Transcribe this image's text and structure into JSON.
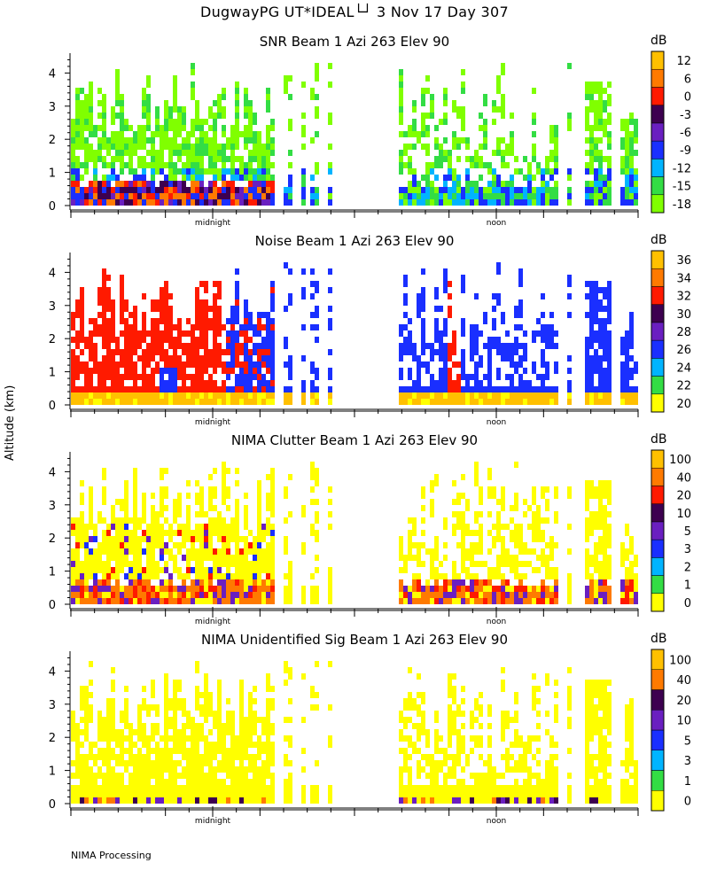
{
  "header": {
    "title": "DugwayPG UT*IDEAL└┘   3 Nov 17 Day 307"
  },
  "axis": {
    "ylabel": "Altitude (km)"
  },
  "footer": {
    "label": "NIMA Processing"
  },
  "chart_data": [
    {
      "type": "heatmap",
      "title": "SNR Beam 1 Azi 263 Elev 90",
      "ylabel": "Altitude (km)",
      "ylim": [
        0,
        4.6
      ],
      "yticks": [
        "0",
        "1",
        "2",
        "3",
        "4"
      ],
      "xticks": [
        "midnight",
        "noon"
      ],
      "unit": "dB",
      "colorbar_labels": [
        "-18",
        "-15",
        "-12",
        "-9",
        "-6",
        "-3",
        "0",
        "6",
        "12"
      ],
      "colorbar_colors": [
        "#80ff00",
        "#33dd44",
        "#00b4ff",
        "#1a2fff",
        "#6a1fc0",
        "#3d0050",
        "#ff1a00",
        "#ff7a00",
        "#ffc000"
      ]
    },
    {
      "type": "heatmap",
      "title": "Noise Beam 1 Azi 263 Elev 90",
      "ylabel": "Altitude (km)",
      "ylim": [
        0,
        4.6
      ],
      "yticks": [
        "0",
        "1",
        "2",
        "3",
        "4"
      ],
      "xticks": [
        "midnight",
        "noon"
      ],
      "unit": "dB",
      "colorbar_labels": [
        "20",
        "22",
        "24",
        "26",
        "28",
        "30",
        "32",
        "34",
        "36"
      ],
      "colorbar_colors": [
        "#ffff00",
        "#33dd44",
        "#00b4ff",
        "#1a2fff",
        "#6a1fc0",
        "#3d0050",
        "#ff1a00",
        "#ff7a00",
        "#ffc000"
      ]
    },
    {
      "type": "heatmap",
      "title": "NIMA Clutter Beam 1 Azi 263 Elev 90",
      "ylabel": "Altitude (km)",
      "ylim": [
        0,
        4.6
      ],
      "yticks": [
        "0",
        "1",
        "2",
        "3",
        "4"
      ],
      "xticks": [
        "midnight",
        "noon"
      ],
      "unit": "dB",
      "colorbar_labels": [
        "0",
        "1",
        "2",
        "3",
        "5",
        "10",
        "20",
        "40",
        "100"
      ],
      "colorbar_colors": [
        "#ffff00",
        "#33dd44",
        "#00b4ff",
        "#1a2fff",
        "#6a1fc0",
        "#3d0050",
        "#ff1a00",
        "#ff7a00",
        "#ffc000"
      ]
    },
    {
      "type": "heatmap",
      "title": "NIMA Unidentified Sig Beam 1 Azi 263 Elev 90",
      "ylabel": "Altitude (km)",
      "ylim": [
        0,
        4.6
      ],
      "yticks": [
        "0",
        "1",
        "2",
        "3",
        "4"
      ],
      "xticks": [
        "midnight",
        "noon"
      ],
      "unit": "dB",
      "colorbar_labels": [
        "0",
        "1",
        "3",
        "5",
        "10",
        "20",
        "40",
        "100"
      ],
      "colorbar_colors": [
        "#ffff00",
        "#33dd44",
        "#00b4ff",
        "#1a2fff",
        "#6a1fc0",
        "#3d0050",
        "#ff7a00",
        "#ffc000"
      ]
    }
  ]
}
